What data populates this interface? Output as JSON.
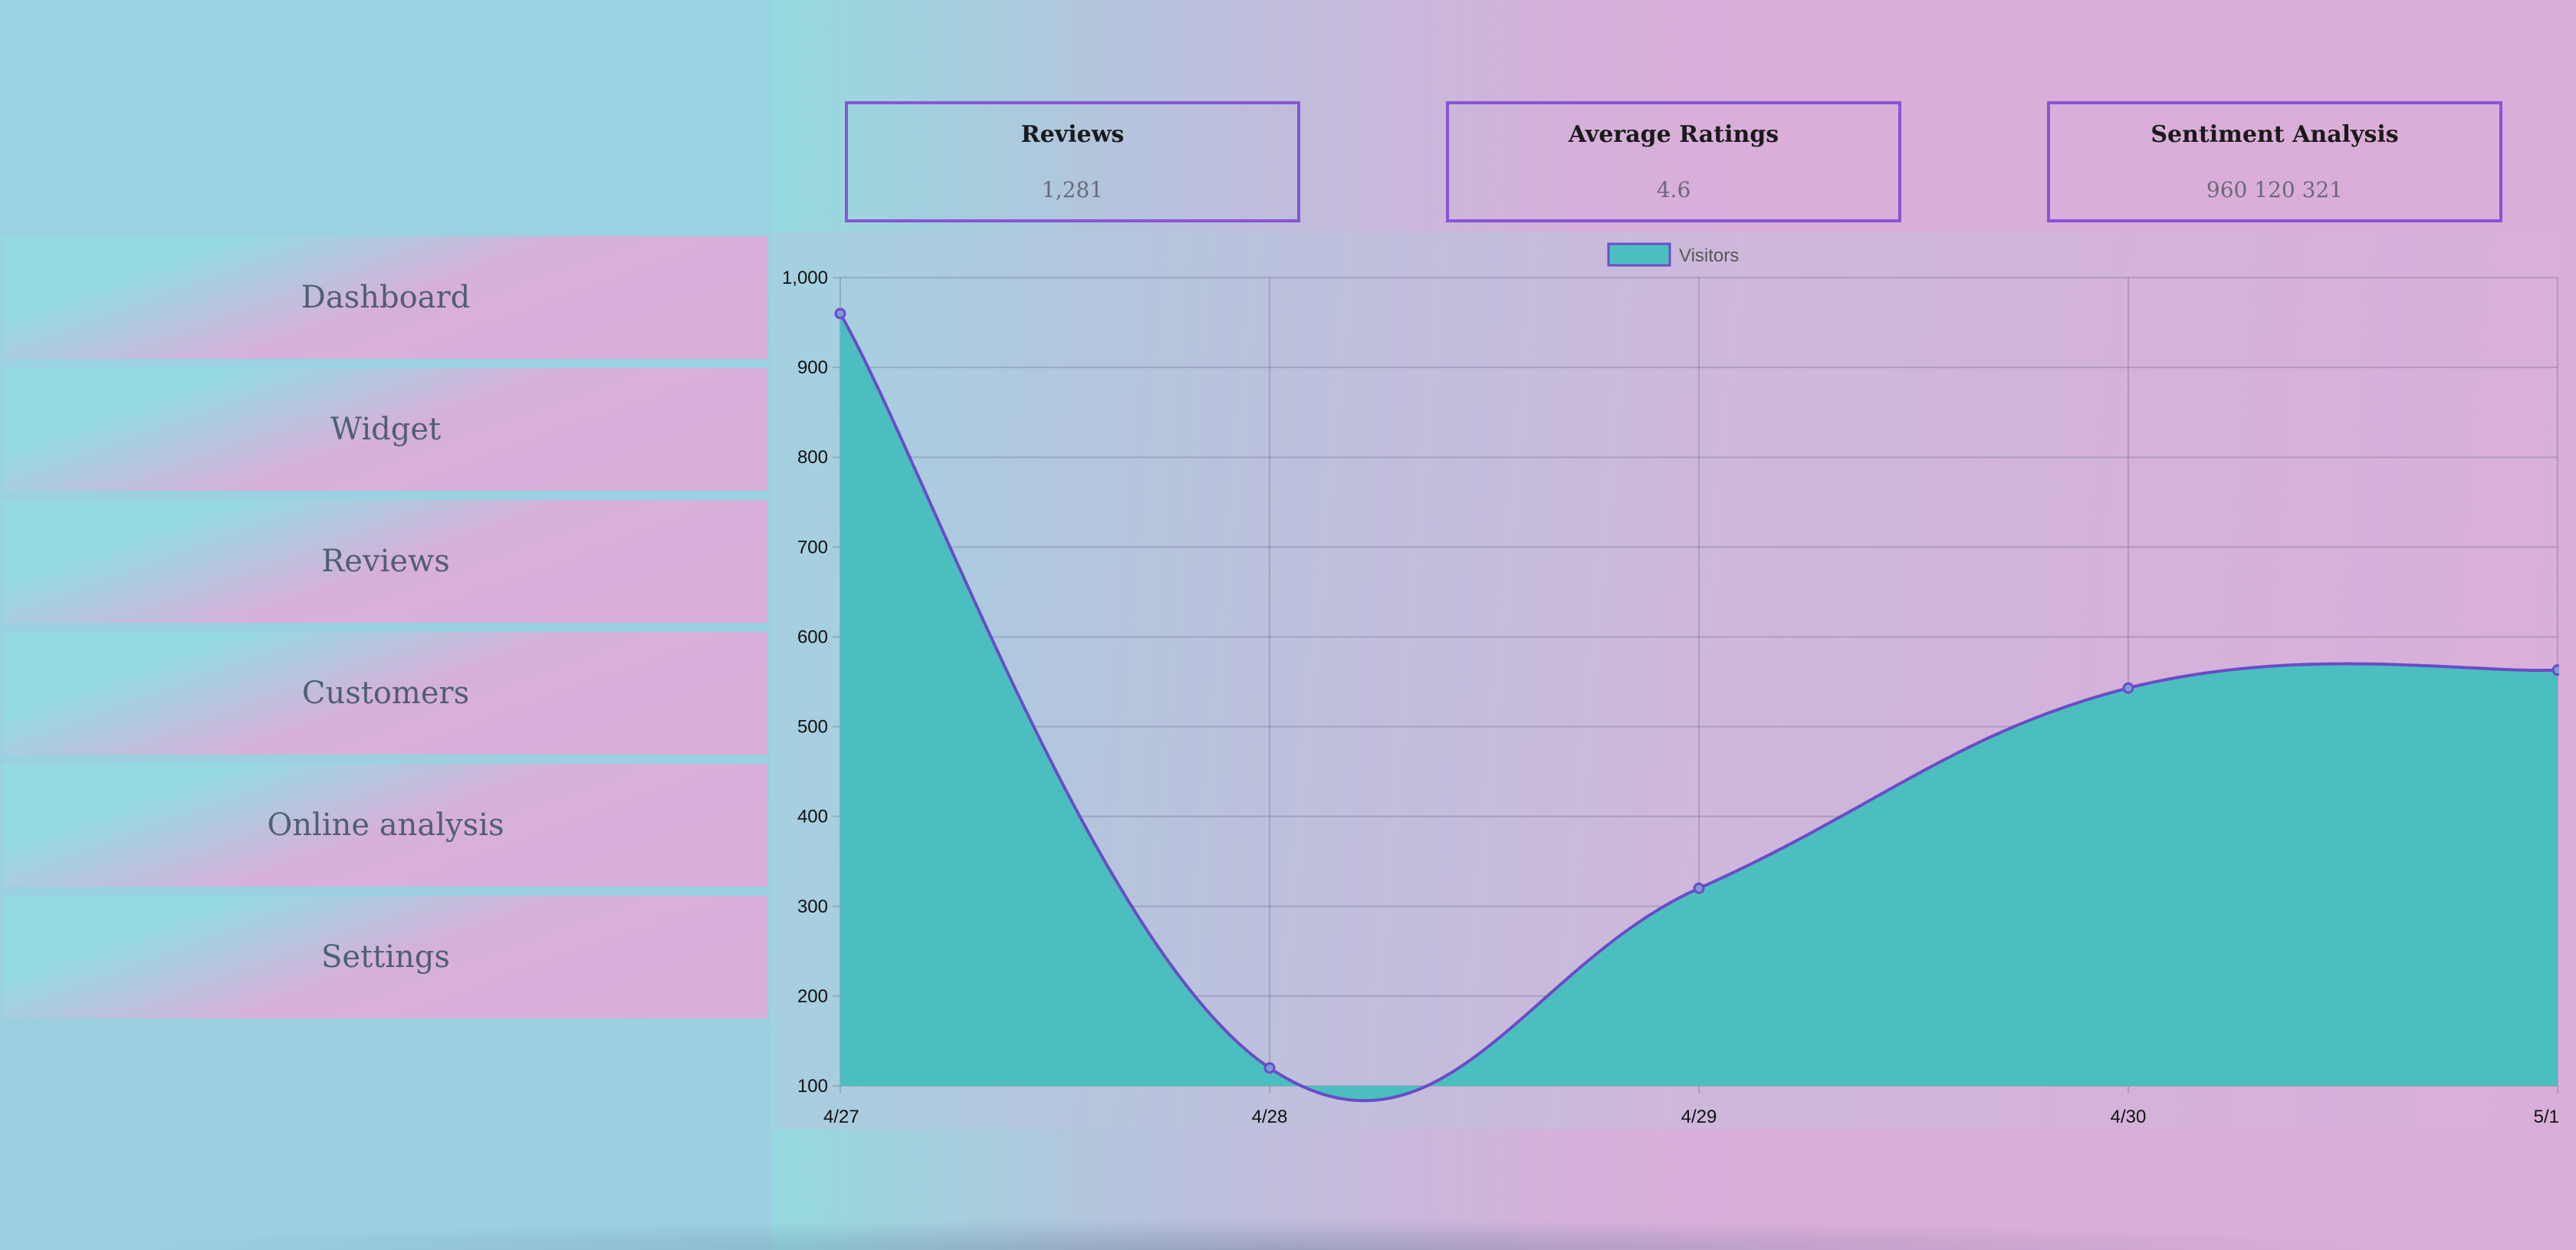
{
  "sidebar": {
    "items": [
      {
        "label": "Dashboard"
      },
      {
        "label": "Widget"
      },
      {
        "label": "Reviews"
      },
      {
        "label": "Customers"
      },
      {
        "label": "Online analysis"
      },
      {
        "label": "Settings"
      }
    ]
  },
  "stats": [
    {
      "title": "Reviews",
      "value": "1,281"
    },
    {
      "title": "Average Ratings",
      "value": "4.6"
    },
    {
      "title": "Sentiment Analysis",
      "value": "960 120 321"
    }
  ],
  "colors": {
    "accent": "#8755d6",
    "area_fill": "#4bbfc0",
    "line": "#6a4cc8"
  },
  "chart_data": {
    "type": "area",
    "x": [
      "4/27",
      "4/28",
      "4/29",
      "4/30",
      "5/1"
    ],
    "series": [
      {
        "name": "Visitors",
        "values": [
          960,
          120,
          320,
          543,
          563
        ]
      }
    ],
    "ylim": [
      100,
      1000
    ],
    "yticks": [
      "100",
      "200",
      "300",
      "400",
      "500",
      "600",
      "700",
      "800",
      "900",
      "1,000"
    ],
    "grid": true,
    "legend_position": "top"
  }
}
